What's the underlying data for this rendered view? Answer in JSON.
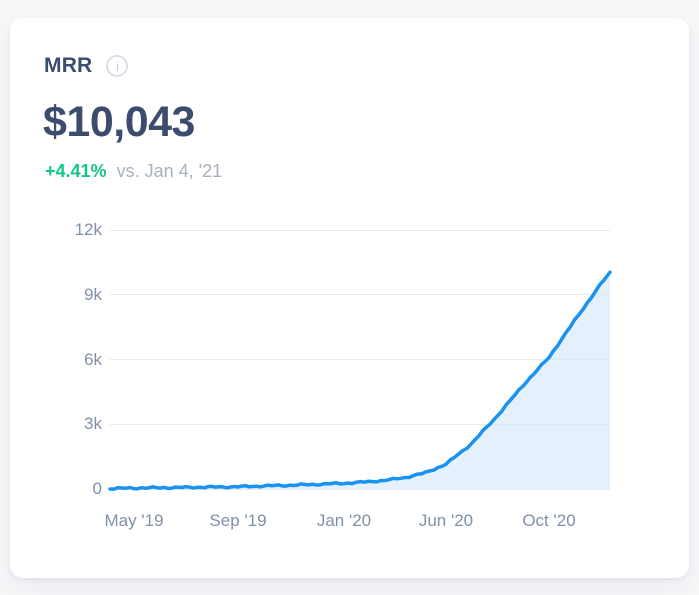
{
  "page": {
    "background": "#f6f7f9"
  },
  "colors": {
    "card_bg": "#ffffff",
    "title_navy": "#3b4c6e",
    "positive_green": "#11c48c",
    "muted_gray": "#a9b0bd",
    "axis_label": "#8090a6",
    "gridline": "#e8eaef",
    "line_blue": "#1a92f0",
    "area_fill": "#cde5f9"
  },
  "icons": {
    "info": "i"
  },
  "card": {
    "title": "MRR",
    "value": "$10,043",
    "change": {
      "delta": "+4.41%",
      "comparison": "vs. Jan 4, '21"
    }
  },
  "chart_data": {
    "type": "area",
    "title": "MRR",
    "xlabel": "",
    "ylabel": "",
    "grid": true,
    "legend": false,
    "ylim": [
      0,
      12000
    ],
    "y_ticks": [
      {
        "value": 0,
        "label": "0"
      },
      {
        "value": 3000,
        "label": "3k"
      },
      {
        "value": 6000,
        "label": "6k"
      },
      {
        "value": 9000,
        "label": "9k"
      },
      {
        "value": 12000,
        "label": "12k"
      }
    ],
    "x_ticks": [
      {
        "label": "May '19",
        "pos": 0.048
      },
      {
        "label": "Sep '19",
        "pos": 0.256
      },
      {
        "label": "Jan '20",
        "pos": 0.468
      },
      {
        "label": "Jun '20",
        "pos": 0.672
      },
      {
        "label": "Oct '20",
        "pos": 0.878
      }
    ],
    "line_color": "#1a92f0",
    "fill_color": "#cde5f9",
    "fill_opacity": 0.55,
    "points": [
      {
        "date": "Apr '19",
        "x": 0.0,
        "value": 20
      },
      {
        "date": "May '19",
        "x": 0.048,
        "value": 45
      },
      {
        "date": "Jun '19",
        "x": 0.1,
        "value": 60
      },
      {
        "date": "Jul '19",
        "x": 0.152,
        "value": 75
      },
      {
        "date": "Aug '19",
        "x": 0.204,
        "value": 90
      },
      {
        "date": "Sep '19",
        "x": 0.256,
        "value": 105
      },
      {
        "date": "Oct '19",
        "x": 0.308,
        "value": 140
      },
      {
        "date": "Nov '19",
        "x": 0.36,
        "value": 175
      },
      {
        "date": "Dec '19",
        "x": 0.412,
        "value": 215
      },
      {
        "date": "Jan '20",
        "x": 0.468,
        "value": 265
      },
      {
        "date": "Feb '20",
        "x": 0.509,
        "value": 320
      },
      {
        "date": "Mar '20",
        "x": 0.55,
        "value": 400
      },
      {
        "date": "Apr '20",
        "x": 0.59,
        "value": 530
      },
      {
        "date": "May '20",
        "x": 0.631,
        "value": 750
      },
      {
        "date": "Jun '20",
        "x": 0.672,
        "value": 1150
      },
      {
        "date": "Jul '20",
        "x": 0.723,
        "value": 2100
      },
      {
        "date": "Aug '20",
        "x": 0.775,
        "value": 3400
      },
      {
        "date": "Sep '20",
        "x": 0.826,
        "value": 4800
      },
      {
        "date": "Oct '20",
        "x": 0.878,
        "value": 6100
      },
      {
        "date": "Nov '20",
        "x": 0.929,
        "value": 7800
      },
      {
        "date": "Dec '20",
        "x": 0.98,
        "value": 9450
      },
      {
        "date": "Jan 4, '21",
        "x": 1.0,
        "value": 10043
      }
    ],
    "latest": {
      "date": "Jan 4, '21",
      "value": 10043,
      "change_pct": "+4.41%"
    }
  }
}
